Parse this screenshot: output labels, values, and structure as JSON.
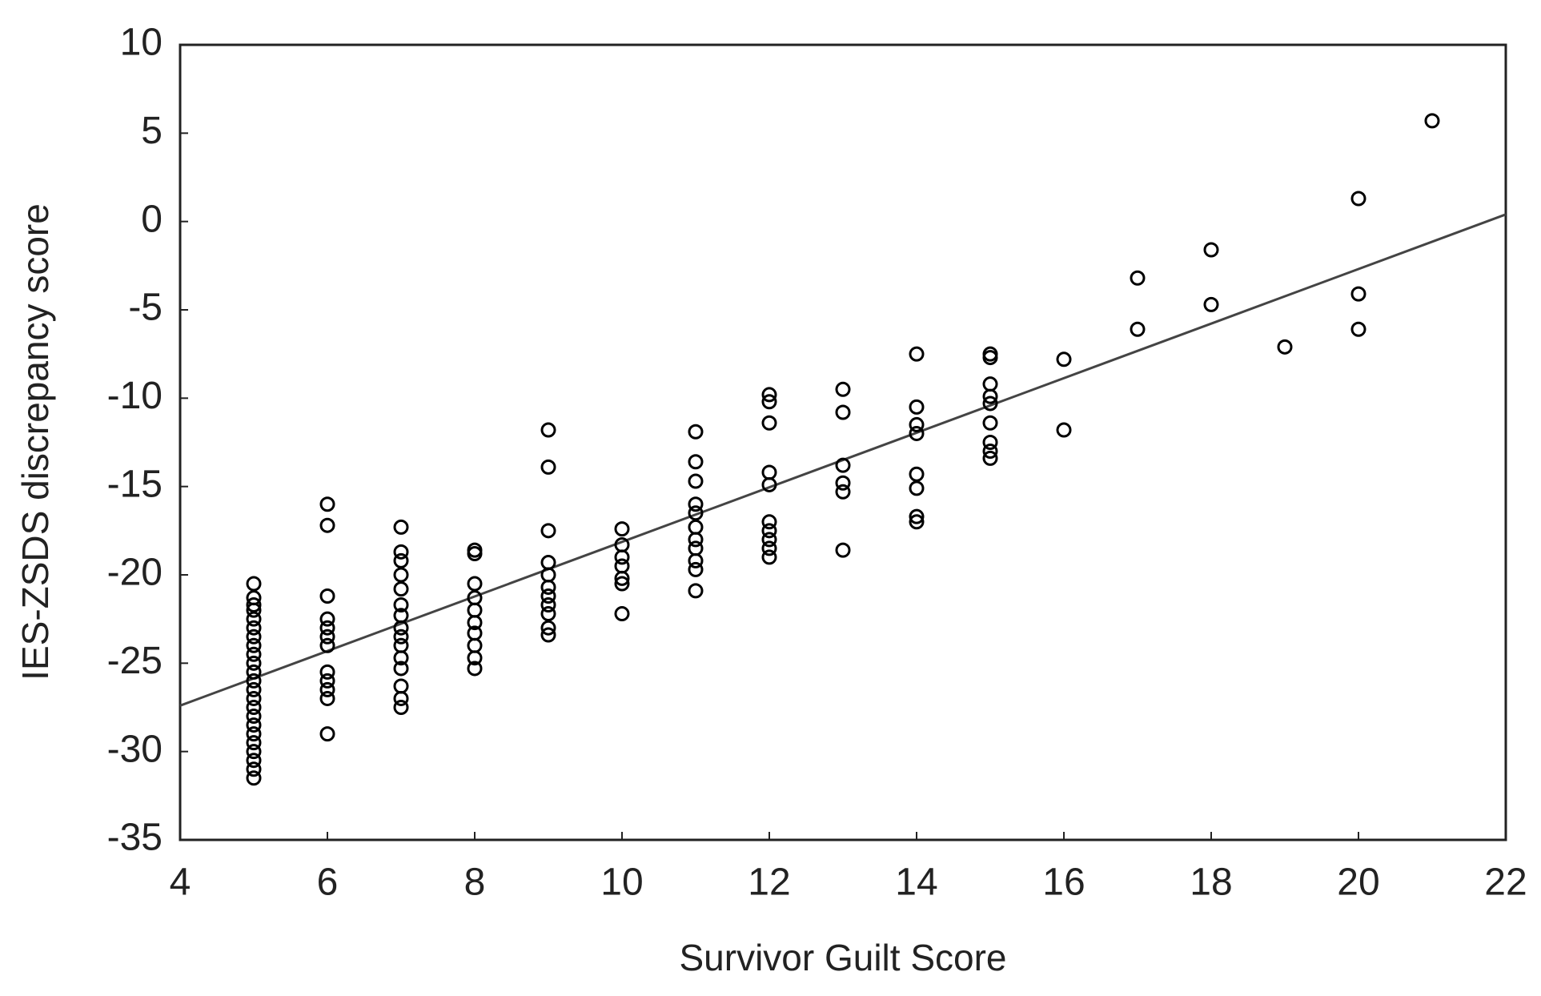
{
  "chart_data": {
    "type": "scatter",
    "x_label": "Survivor Guilt Score",
    "y_label": "IES-ZSDS discrepancy score",
    "xlim": [
      4,
      22
    ],
    "xticks": [
      4,
      6,
      8,
      10,
      12,
      14,
      16,
      18,
      20,
      22
    ],
    "ylim": [
      -35,
      10
    ],
    "yticks": [
      -35,
      -30,
      -25,
      -20,
      -15,
      -10,
      -5,
      0,
      5,
      10
    ],
    "color": "#000000",
    "x": [
      5,
      5,
      5,
      5,
      5,
      5,
      5,
      5,
      5,
      5,
      5,
      5,
      5,
      5,
      5,
      5,
      5,
      5,
      5,
      5,
      5,
      5,
      5,
      6,
      6,
      6,
      6,
      6,
      6,
      6,
      6,
      6,
      6,
      6,
      6,
      7,
      7,
      7,
      7,
      7,
      7,
      7,
      7,
      7,
      7,
      7,
      7,
      7,
      7,
      7,
      8,
      8,
      8,
      8,
      8,
      8,
      8,
      8,
      8,
      8,
      9,
      9,
      9,
      9,
      9,
      9,
      9,
      9,
      9,
      9,
      9,
      10,
      10,
      10,
      10,
      10,
      10,
      10,
      11,
      11,
      11,
      11,
      11,
      11,
      11,
      11,
      11,
      11,
      11,
      12,
      12,
      12,
      12,
      12,
      12,
      12,
      12,
      12,
      12,
      13,
      13,
      13,
      13,
      13,
      13,
      14,
      14,
      14,
      14,
      14,
      14,
      14,
      14,
      15,
      15,
      15,
      15,
      15,
      15,
      15,
      15,
      15,
      16,
      16,
      17,
      17,
      18,
      18,
      19,
      20,
      20,
      20,
      21
    ],
    "values": [
      -20.5,
      -21.3,
      -21.7,
      -22,
      -22.5,
      -23,
      -23.5,
      -24,
      -24.5,
      -25,
      -25.5,
      -26,
      -26.5,
      -27,
      -27.5,
      -28,
      -28.5,
      -29,
      -29.5,
      -30,
      -30.5,
      -31,
      -31.5,
      -16,
      -17.2,
      -21.2,
      -22.5,
      -23,
      -23.5,
      -24,
      -25.5,
      -26,
      -26.5,
      -27,
      -29,
      -17.3,
      -18.7,
      -19.2,
      -20,
      -20.8,
      -21.7,
      -22.3,
      -23,
      -23.5,
      -24,
      -24.7,
      -25.3,
      -26.3,
      -27,
      -27.5,
      -18.6,
      -18.8,
      -20.5,
      -21.3,
      -22,
      -22.7,
      -23.3,
      -24,
      -24.7,
      -25.3,
      -11.8,
      -13.9,
      -17.5,
      -19.3,
      -20,
      -20.7,
      -21.2,
      -21.7,
      -22.2,
      -23,
      -23.4,
      -17.4,
      -18.3,
      -19,
      -19.5,
      -20.2,
      -20.5,
      -22.2,
      -11.9,
      -13.6,
      -14.7,
      -16,
      -16.5,
      -17.3,
      -18,
      -18.5,
      -19.2,
      -19.7,
      -20.9,
      -9.8,
      -10.2,
      -11.4,
      -14.2,
      -14.9,
      -17,
      -17.5,
      -18,
      -18.5,
      -19,
      -9.5,
      -10.8,
      -13.8,
      -14.8,
      -15.3,
      -18.6,
      -7.5,
      -10.5,
      -11.5,
      -12,
      -14.3,
      -15.1,
      -16.7,
      -17,
      -7.5,
      -7.7,
      -9.2,
      -9.9,
      -10.3,
      -11.4,
      -12.5,
      -13,
      -13.4,
      -7.8,
      -11.8,
      -3.2,
      -6.1,
      -1.6,
      -4.7,
      -7.1,
      1.3,
      -4.1,
      -6.1,
      5.7
    ],
    "trend_line": {
      "x": [
        4,
        22
      ],
      "y": [
        -27.4,
        0.4
      ],
      "color": "#444444"
    }
  }
}
